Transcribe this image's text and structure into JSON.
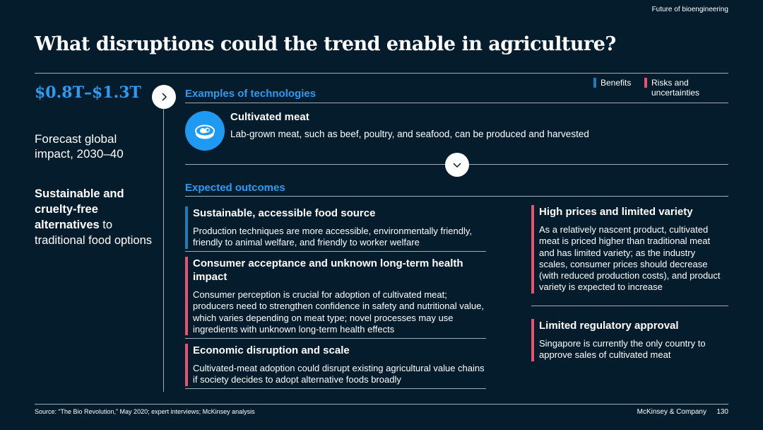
{
  "header": {
    "tag": "Future of bioengineering",
    "title": "What disruptions could the trend enable in agriculture?"
  },
  "impact": {
    "value": "$0.8T–$1.3T",
    "caption": "Forecast global impact, 2030–40",
    "summary_bold": "Sustainable and cruelty-free alternatives",
    "summary_rest": " to traditional food options"
  },
  "legend": {
    "benefits": "Benefits",
    "risks": "Risks and uncertainties"
  },
  "colors": {
    "benefit": "#2279b5",
    "risk": "#e5546c",
    "accent": "#2e9bf0",
    "background": "#051c2c"
  },
  "technologies": {
    "heading": "Examples of technologies",
    "items": [
      {
        "icon": "meat-icon",
        "title": "Cultivated meat",
        "description": "Lab-grown meat, such as beef, poultry, and seafood, can be produced and harvested"
      }
    ]
  },
  "outcomes": {
    "heading": "Expected outcomes",
    "left": [
      {
        "type": "benefit",
        "title": "Sustainable, accessible food source",
        "text": "Production techniques are more accessible, environmentally friendly, friendly to animal welfare, and friendly to worker welfare"
      },
      {
        "type": "risk",
        "title": "Consumer acceptance and unknown long-term health impact",
        "text": "Consumer perception is crucial for adoption of cultivated meat; producers need to strengthen confidence in safety and nutritional value, which varies depending on meat type; novel processes may use ingredients with unknown long-term health effects"
      },
      {
        "type": "risk",
        "title": "Economic disruption and scale",
        "text": "Cultivated-meat adoption could disrupt existing agricultural value chains if society decides to adopt alternative foods broadly"
      }
    ],
    "right": [
      {
        "type": "risk",
        "title": "High prices and limited variety",
        "text": "As a relatively nascent product, cultivated meat is priced higher than traditional meat and has limited variety; as the industry scales, consumer prices should decrease (with reduced production costs), and product variety is expected to increase"
      },
      {
        "type": "risk",
        "title": "Limited regulatory approval",
        "text": "Singapore is currently the only country to approve sales of cultivated meat"
      }
    ]
  },
  "footer": {
    "source": "Source: “The Bio Revolution,” May 2020; expert interviews; McKinsey analysis",
    "company": "McKinsey & Company",
    "page": "130"
  }
}
